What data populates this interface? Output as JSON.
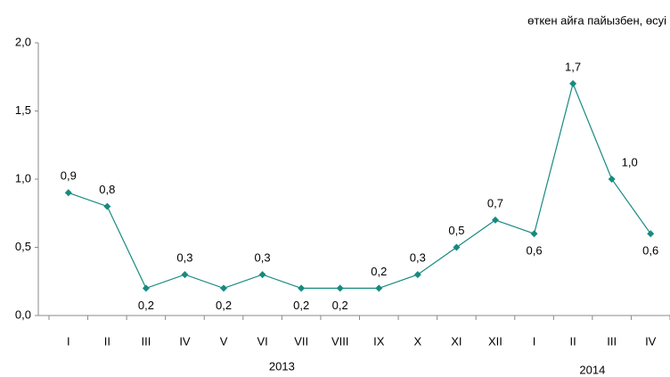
{
  "chart_data": {
    "type": "line",
    "subtitle": "өткен айға пайызбен, өсуі",
    "categories": [
      "I",
      "II",
      "III",
      "IV",
      "V",
      "VI",
      "VII",
      "VIII",
      "IX",
      "X",
      "XI",
      "XII",
      "I",
      "II",
      "III",
      "IV"
    ],
    "groups": [
      {
        "label": "2013",
        "count": 12
      },
      {
        "label": "2014",
        "count": 4
      }
    ],
    "series": [
      {
        "color": "#178a80",
        "values": [
          0.9,
          0.8,
          0.2,
          0.3,
          0.2,
          0.3,
          0.2,
          0.2,
          0.2,
          0.3,
          0.5,
          0.7,
          0.6,
          1.7,
          1.0,
          0.6
        ],
        "value_labels": [
          "0,9",
          "0,8",
          "0,2",
          "0,3",
          "0,2",
          "0,3",
          "0,2",
          "0,2",
          "0,2",
          "0,3",
          "0,5",
          "0,7",
          "0,6",
          "1,7",
          "1,0",
          "0,6"
        ]
      }
    ],
    "ylim": [
      0,
      2
    ],
    "yticks": [
      {
        "value": 0,
        "label": "0,0"
      },
      {
        "value": 0.5,
        "label": "0,5"
      },
      {
        "value": 1,
        "label": "1,0"
      },
      {
        "value": 1.5,
        "label": "1,5"
      },
      {
        "value": 2,
        "label": "2,0"
      }
    ],
    "grid": false
  }
}
